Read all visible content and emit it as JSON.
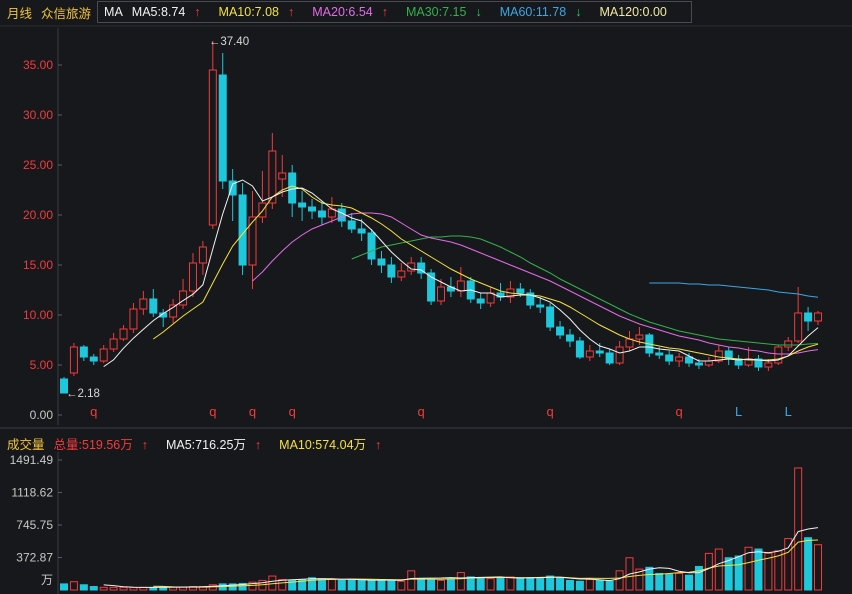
{
  "header": {
    "period_label": "月线",
    "stock_name": "众信旅游",
    "indicator": "MA",
    "ma": [
      {
        "label": "MA5:8.74",
        "arrow": "↑",
        "color": "#f2f2f2"
      },
      {
        "label": "MA10:7.08",
        "arrow": "↑",
        "color": "#f5e23c"
      },
      {
        "label": "MA20:6.54",
        "arrow": "↑",
        "color": "#e36de6"
      },
      {
        "label": "MA30:7.15",
        "arrow": "↓",
        "color": "#35b04a"
      },
      {
        "label": "MA60:11.78",
        "arrow": "↓",
        "color": "#3aa7e6"
      },
      {
        "label": "MA120:0.00",
        "arrow": "",
        "color": "#f2e9a0"
      }
    ]
  },
  "volume_header": {
    "label": "成交量",
    "total": "总量:519.56万",
    "total_arrow": "↑",
    "ma5": "MA5:716.25万",
    "ma5_arrow": "↑",
    "ma10": "MA10:574.04万",
    "ma10_arrow": "↑"
  },
  "chart_data": [
    {
      "type": "candlestick",
      "title": "",
      "y_ticks": [
        "35.00",
        "30.00",
        "25.00",
        "20.00",
        "15.00",
        "10.00",
        "5.00",
        "0.00"
      ],
      "ylim": [
        0,
        40
      ],
      "annotations": {
        "high": "37.40",
        "low": "2.18"
      },
      "markers": [
        {
          "i": 3,
          "text": "q"
        },
        {
          "i": 15,
          "text": "q"
        },
        {
          "i": 19,
          "text": "q"
        },
        {
          "i": 23,
          "text": "q"
        },
        {
          "i": 36,
          "text": "q"
        },
        {
          "i": 49,
          "text": "q"
        },
        {
          "i": 62,
          "text": "q"
        },
        {
          "i": 68,
          "text": "L"
        },
        {
          "i": 73,
          "text": "L"
        }
      ],
      "colors": {
        "up": "#f23b3b",
        "down": "#1ec8dc",
        "ma5": "#f2f2f2",
        "ma10": "#f5e23c",
        "ma20": "#e36de6",
        "ma30": "#35b04a",
        "ma60": "#3aa7e6"
      },
      "candles": [
        [
          3.6,
          2.2,
          3.8,
          2.18
        ],
        [
          4.2,
          6.8,
          7.2,
          3.9
        ],
        [
          6.8,
          5.8,
          7.0,
          5.4
        ],
        [
          5.8,
          5.4,
          6.1,
          5.0
        ],
        [
          5.4,
          6.6,
          7.0,
          5.2
        ],
        [
          6.6,
          7.6,
          8.2,
          6.3
        ],
        [
          7.6,
          8.6,
          9.0,
          7.4
        ],
        [
          8.6,
          10.6,
          11.2,
          8.2
        ],
        [
          10.6,
          11.6,
          12.4,
          10.0
        ],
        [
          11.6,
          10.2,
          12.6,
          9.8
        ],
        [
          10.2,
          9.8,
          10.6,
          8.8
        ],
        [
          9.8,
          11.0,
          11.6,
          9.2
        ],
        [
          11.0,
          12.4,
          13.6,
          10.6
        ],
        [
          12.4,
          15.2,
          16.2,
          11.8
        ],
        [
          15.2,
          16.8,
          17.4,
          14.0
        ],
        [
          19.0,
          34.5,
          37.4,
          18.6
        ],
        [
          34.0,
          23.4,
          36.2,
          22.6
        ],
        [
          23.4,
          22.0,
          24.6,
          19.4
        ],
        [
          22.0,
          15.0,
          23.2,
          14.0
        ],
        [
          15.0,
          19.8,
          22.4,
          12.6
        ],
        [
          19.8,
          21.2,
          24.4,
          19.2
        ],
        [
          21.2,
          26.4,
          28.2,
          20.6
        ],
        [
          23.6,
          24.2,
          26.0,
          21.8
        ],
        [
          24.2,
          21.2,
          25.0,
          19.8
        ],
        [
          21.2,
          20.8,
          22.4,
          19.4
        ],
        [
          20.8,
          20.4,
          21.6,
          19.6
        ],
        [
          20.4,
          19.8,
          21.4,
          19.0
        ],
        [
          19.8,
          20.6,
          21.8,
          19.2
        ],
        [
          20.6,
          19.4,
          21.2,
          18.8
        ],
        [
          19.4,
          18.6,
          20.2,
          18.2
        ],
        [
          18.6,
          18.2,
          19.6,
          17.4
        ],
        [
          18.2,
          15.6,
          18.6,
          15.0
        ],
        [
          15.6,
          15.0,
          16.4,
          14.2
        ],
        [
          15.0,
          13.8,
          15.8,
          13.2
        ],
        [
          13.8,
          14.4,
          15.2,
          13.4
        ],
        [
          14.4,
          15.2,
          15.8,
          14.0
        ],
        [
          15.2,
          14.2,
          15.8,
          13.6
        ],
        [
          14.2,
          11.4,
          14.6,
          11.0
        ],
        [
          11.4,
          12.8,
          13.6,
          11.0
        ],
        [
          12.8,
          12.4,
          13.8,
          11.8
        ],
        [
          12.4,
          13.4,
          14.8,
          11.8
        ],
        [
          13.4,
          11.6,
          13.8,
          11.2
        ],
        [
          11.6,
          11.2,
          12.2,
          10.6
        ],
        [
          11.2,
          12.2,
          12.8,
          10.8
        ],
        [
          12.2,
          11.8,
          13.2,
          11.4
        ],
        [
          11.8,
          12.6,
          13.4,
          11.2
        ],
        [
          12.6,
          12.2,
          13.2,
          11.8
        ],
        [
          12.2,
          11.0,
          12.6,
          10.6
        ],
        [
          11.0,
          10.8,
          11.8,
          10.2
        ],
        [
          10.8,
          8.8,
          11.2,
          8.4
        ],
        [
          8.8,
          8.0,
          9.4,
          7.6
        ],
        [
          8.0,
          7.4,
          8.6,
          6.8
        ],
        [
          7.4,
          5.8,
          7.8,
          5.6
        ],
        [
          5.8,
          6.4,
          7.0,
          5.4
        ],
        [
          6.4,
          6.2,
          7.2,
          5.8
        ],
        [
          6.2,
          5.2,
          6.6,
          5.0
        ],
        [
          5.2,
          6.8,
          7.4,
          5.0
        ],
        [
          6.8,
          7.6,
          8.4,
          6.4
        ],
        [
          7.6,
          8.0,
          8.8,
          7.0
        ],
        [
          8.0,
          6.2,
          8.2,
          5.8
        ],
        [
          6.2,
          6.0,
          6.8,
          5.6
        ],
        [
          6.0,
          5.4,
          6.4,
          5.0
        ],
        [
          5.4,
          5.8,
          6.2,
          4.8
        ],
        [
          5.8,
          5.2,
          6.2,
          4.8
        ],
        [
          5.2,
          5.0,
          5.6,
          4.6
        ],
        [
          5.0,
          5.4,
          5.8,
          4.8
        ],
        [
          5.4,
          6.4,
          7.0,
          5.2
        ],
        [
          6.4,
          5.6,
          6.8,
          5.0
        ],
        [
          5.6,
          5.0,
          6.0,
          4.6
        ],
        [
          5.0,
          5.6,
          6.8,
          4.8
        ],
        [
          5.6,
          4.8,
          6.0,
          4.4
        ],
        [
          4.8,
          5.2,
          5.6,
          4.4
        ],
        [
          5.2,
          6.8,
          7.0,
          5.0
        ],
        [
          6.8,
          7.4,
          7.8,
          6.4
        ],
        [
          7.4,
          10.2,
          12.8,
          7.2
        ],
        [
          10.2,
          9.4,
          10.8,
          8.4
        ],
        [
          9.4,
          10.2,
          10.4,
          9.0
        ]
      ],
      "ma5": [
        null,
        null,
        null,
        null,
        4.84,
        5.52,
        6.68,
        7.68,
        8.58,
        9.44,
        10.14,
        10.76,
        11.44,
        12.08,
        13.02,
        16.6,
        20.1,
        23.1,
        23.5,
        22.9,
        21.4,
        21.8,
        22.3,
        22.6,
        22.7,
        22.2,
        21.4,
        20.6,
        20.2,
        19.7,
        19.4,
        18.5,
        17.4,
        16.3,
        15.4,
        14.6,
        14.5,
        13.8,
        13.3,
        12.8,
        12.4,
        12.5,
        12.2,
        12.2,
        11.8,
        11.9,
        12.0,
        12.0,
        11.7,
        11.3,
        10.5,
        9.6,
        8.5,
        7.6,
        6.9,
        6.6,
        6.2,
        6.4,
        6.8,
        6.8,
        6.6,
        6.5,
        6.4,
        5.9,
        5.4,
        5.4,
        5.5,
        5.6,
        5.5,
        5.6,
        5.5,
        5.4,
        5.5,
        5.9,
        6.9,
        7.9,
        8.74
      ],
      "ma10": [
        null,
        null,
        null,
        null,
        null,
        null,
        null,
        null,
        null,
        7.6,
        8.3,
        9.1,
        9.9,
        10.6,
        11.3,
        13.2,
        15.1,
        16.9,
        18.1,
        19.3,
        20.4,
        21.8,
        22.5,
        22.9,
        22.6,
        21.8,
        21.2,
        21.0,
        20.9,
        20.7,
        20.2,
        19.7,
        19.1,
        18.4,
        17.6,
        17.0,
        16.4,
        15.8,
        15.2,
        14.6,
        14.1,
        13.6,
        13.2,
        12.8,
        12.4,
        12.2,
        12.1,
        12.0,
        11.9,
        11.6,
        11.3,
        10.8,
        10.2,
        9.6,
        9.0,
        8.5,
        8.0,
        7.6,
        7.3,
        7.1,
        6.9,
        6.7,
        6.6,
        6.4,
        6.2,
        6.0,
        5.8,
        5.7,
        5.6,
        5.5,
        5.5,
        5.5,
        5.6,
        5.9,
        6.4,
        6.8,
        7.08
      ],
      "ma20": [
        null,
        null,
        null,
        null,
        null,
        null,
        null,
        null,
        null,
        null,
        null,
        null,
        null,
        null,
        null,
        null,
        null,
        null,
        null,
        13.4,
        14.3,
        15.4,
        16.4,
        17.3,
        18.0,
        18.6,
        19.0,
        19.4,
        19.8,
        20.1,
        20.2,
        20.2,
        20.1,
        19.8,
        19.2,
        18.6,
        18.0,
        17.7,
        17.5,
        17.3,
        17.0,
        16.6,
        16.2,
        15.8,
        15.4,
        15.0,
        14.6,
        14.2,
        13.8,
        13.4,
        12.9,
        12.4,
        11.9,
        11.4,
        10.9,
        10.4,
        9.9,
        9.5,
        9.1,
        8.8,
        8.5,
        8.2,
        7.9,
        7.7,
        7.5,
        7.2,
        7.0,
        6.8,
        6.7,
        6.5,
        6.4,
        6.2,
        6.1,
        6.1,
        6.2,
        6.4,
        6.54
      ],
      "ma30": [
        null,
        null,
        null,
        null,
        null,
        null,
        null,
        null,
        null,
        null,
        null,
        null,
        null,
        null,
        null,
        null,
        null,
        null,
        null,
        null,
        null,
        null,
        null,
        null,
        null,
        null,
        null,
        null,
        null,
        15.6,
        16.0,
        16.4,
        16.8,
        17.0,
        17.2,
        17.4,
        17.6,
        17.8,
        17.8,
        17.9,
        17.9,
        17.8,
        17.6,
        17.2,
        16.8,
        16.3,
        15.8,
        15.2,
        14.7,
        14.2,
        13.6,
        13.1,
        12.6,
        12.1,
        11.6,
        11.1,
        10.6,
        10.1,
        9.7,
        9.3,
        9.0,
        8.7,
        8.4,
        8.2,
        8.0,
        7.8,
        7.6,
        7.5,
        7.4,
        7.3,
        7.2,
        7.1,
        7.0,
        7.0,
        7.0,
        7.1,
        7.15
      ],
      "ma60": [
        null,
        null,
        null,
        null,
        null,
        null,
        null,
        null,
        null,
        null,
        null,
        null,
        null,
        null,
        null,
        null,
        null,
        null,
        null,
        null,
        null,
        null,
        null,
        null,
        null,
        null,
        null,
        null,
        null,
        null,
        null,
        null,
        null,
        null,
        null,
        null,
        null,
        null,
        null,
        null,
        null,
        null,
        null,
        null,
        null,
        null,
        null,
        null,
        null,
        null,
        null,
        null,
        null,
        null,
        null,
        null,
        null,
        null,
        null,
        13.2,
        13.2,
        13.2,
        13.2,
        13.1,
        13.1,
        13.0,
        13.0,
        12.9,
        12.8,
        12.7,
        12.6,
        12.5,
        12.3,
        12.2,
        12.1,
        11.9,
        11.78
      ]
    },
    {
      "type": "bar",
      "title": "",
      "y_ticks": [
        "1491.49",
        "1118.62",
        "745.75",
        "372.87"
      ],
      "unit": "万",
      "ylim": [
        0,
        1491.49
      ],
      "colors": {
        "up": "#f23b3b",
        "down": "#1ec8dc",
        "ma5": "#f2f2f2",
        "ma10": "#f5e23c"
      },
      "volume": [
        70,
        95,
        60,
        40,
        30,
        30,
        30,
        30,
        30,
        30,
        35,
        35,
        35,
        40,
        40,
        60,
        70,
        70,
        75,
        90,
        110,
        160,
        120,
        110,
        120,
        140,
        130,
        120,
        110,
        120,
        110,
        110,
        120,
        110,
        100,
        220,
        130,
        120,
        110,
        130,
        200,
        150,
        130,
        130,
        140,
        150,
        140,
        140,
        130,
        160,
        140,
        110,
        100,
        120,
        110,
        100,
        220,
        370,
        240,
        260,
        190,
        180,
        190,
        170,
        270,
        420,
        470,
        370,
        390,
        490,
        470,
        420,
        450,
        590,
        1400,
        600,
        519.56
      ],
      "vol_ma5": [
        null,
        null,
        null,
        null,
        59,
        51,
        38,
        32,
        30,
        30,
        31,
        32,
        33,
        35,
        37,
        42,
        49,
        56,
        63,
        73,
        83,
        101,
        111,
        118,
        124,
        130,
        130,
        128,
        124,
        124,
        118,
        114,
        114,
        114,
        110,
        132,
        134,
        136,
        138,
        142,
        138,
        142,
        144,
        148,
        150,
        140,
        138,
        140,
        140,
        146,
        146,
        136,
        126,
        126,
        116,
        108,
        130,
        184,
        208,
        240,
        256,
        248,
        216,
        198,
        200,
        246,
        302,
        338,
        382,
        428,
        438,
        428,
        444,
        484,
        670,
        700,
        716.25
      ],
      "vol_ma10": [
        null,
        null,
        null,
        null,
        null,
        null,
        null,
        null,
        null,
        44,
        41,
        35,
        33,
        33,
        33,
        36,
        40,
        44,
        48,
        53,
        61,
        72,
        82,
        91,
        101,
        112,
        118,
        122,
        123,
        126,
        125,
        124,
        121,
        119,
        117,
        125,
        125,
        125,
        124,
        127,
        128,
        138,
        139,
        142,
        145,
        143,
        140,
        141,
        144,
        148,
        148,
        140,
        133,
        134,
        133,
        133,
        138,
        155,
        167,
        178,
        181,
        189,
        200,
        203,
        220,
        251,
        275,
        282,
        290,
        314,
        342,
        365,
        391,
        433,
        549,
        569,
        574.04
      ]
    }
  ]
}
